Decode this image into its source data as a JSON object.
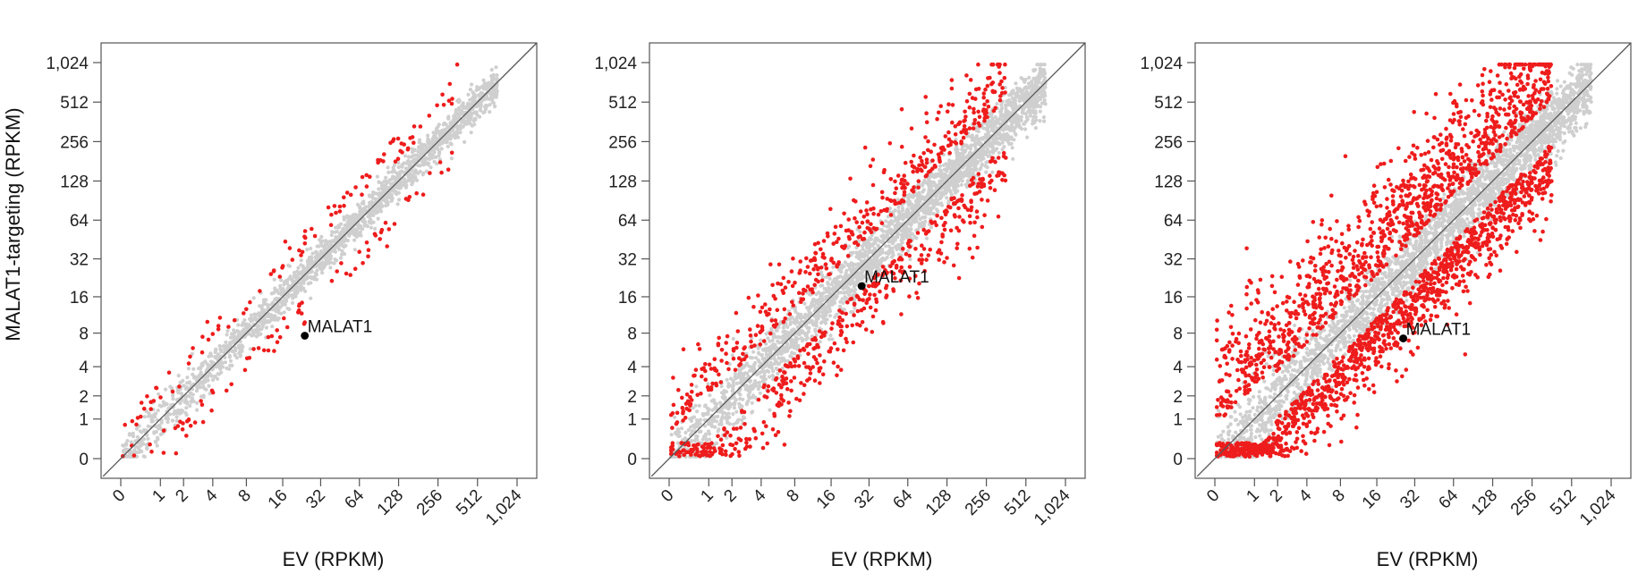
{
  "y_axis_label": "MALAT1-targeting (RPKM)",
  "chart_data": [
    {
      "type": "scatter",
      "xlabel": "EV (RPKM)",
      "ylabel": "MALAT1-targeting (RPKM)",
      "scale": "log2(x+1)",
      "ticks": [
        "0",
        "1",
        "2",
        "4",
        "8",
        "16",
        "32",
        "64",
        "128",
        "256",
        "512",
        "1,024"
      ],
      "tick_values": [
        0,
        1,
        2,
        4,
        8,
        16,
        32,
        64,
        128,
        256,
        512,
        1024
      ],
      "xlim": [
        0,
        1024
      ],
      "ylim": [
        0,
        1024
      ],
      "diagonal": "y = x",
      "colors": {
        "unchanged": "#cfcfcf",
        "changed": "#ee1c1c",
        "highlight": "#000000",
        "diagonal": "#555555",
        "frame": "#555555"
      },
      "highlight": {
        "label": "MALAT1",
        "x": 24,
        "y": 7.6
      },
      "spread": {
        "gray": 0.22,
        "red_up": 0.7,
        "red_down": 0.7,
        "red_low": 0.6
      },
      "counts": {
        "gray": 1900,
        "red": 180
      }
    },
    {
      "type": "scatter",
      "xlabel": "EV (RPKM)",
      "ylabel": "",
      "scale": "log2(x+1)",
      "ticks": [
        "0",
        "1",
        "2",
        "4",
        "8",
        "16",
        "32",
        "64",
        "128",
        "256",
        "512",
        "1,024"
      ],
      "tick_values": [
        0,
        1,
        2,
        4,
        8,
        16,
        32,
        64,
        128,
        256,
        512,
        1024
      ],
      "xlim": [
        0,
        1024
      ],
      "ylim": [
        0,
        1024
      ],
      "diagonal": "y = x",
      "colors": {
        "unchanged": "#cfcfcf",
        "changed": "#ee1c1c",
        "highlight": "#000000",
        "diagonal": "#555555",
        "frame": "#555555"
      },
      "highlight": {
        "label": "MALAT1",
        "x": 28,
        "y": 19.5
      },
      "spread": {
        "gray": 0.35,
        "red_up": 1.3,
        "red_down": 1.4,
        "red_low": 1.1
      },
      "counts": {
        "gray": 2600,
        "red": 900
      }
    },
    {
      "type": "scatter",
      "xlabel": "EV (RPKM)",
      "ylabel": "",
      "scale": "log2(x+1)",
      "ticks": [
        "0",
        "1",
        "2",
        "4",
        "8",
        "16",
        "32",
        "64",
        "128",
        "256",
        "512",
        "1,024"
      ],
      "tick_values": [
        0,
        1,
        2,
        4,
        8,
        16,
        32,
        64,
        128,
        256,
        512,
        1024
      ],
      "xlim": [
        0,
        1024
      ],
      "ylim": [
        0,
        1024
      ],
      "diagonal": "y = x",
      "colors": {
        "unchanged": "#cfcfcf",
        "changed": "#ee1c1c",
        "highlight": "#000000",
        "diagonal": "#555555",
        "frame": "#555555"
      },
      "highlight": {
        "label": "MALAT1",
        "x": 26,
        "y": 7.2
      },
      "spread": {
        "gray": 0.4,
        "red_up": 2.2,
        "red_down": 1.4,
        "red_low": 1.5
      },
      "counts": {
        "gray": 2800,
        "red": 2400
      }
    }
  ]
}
